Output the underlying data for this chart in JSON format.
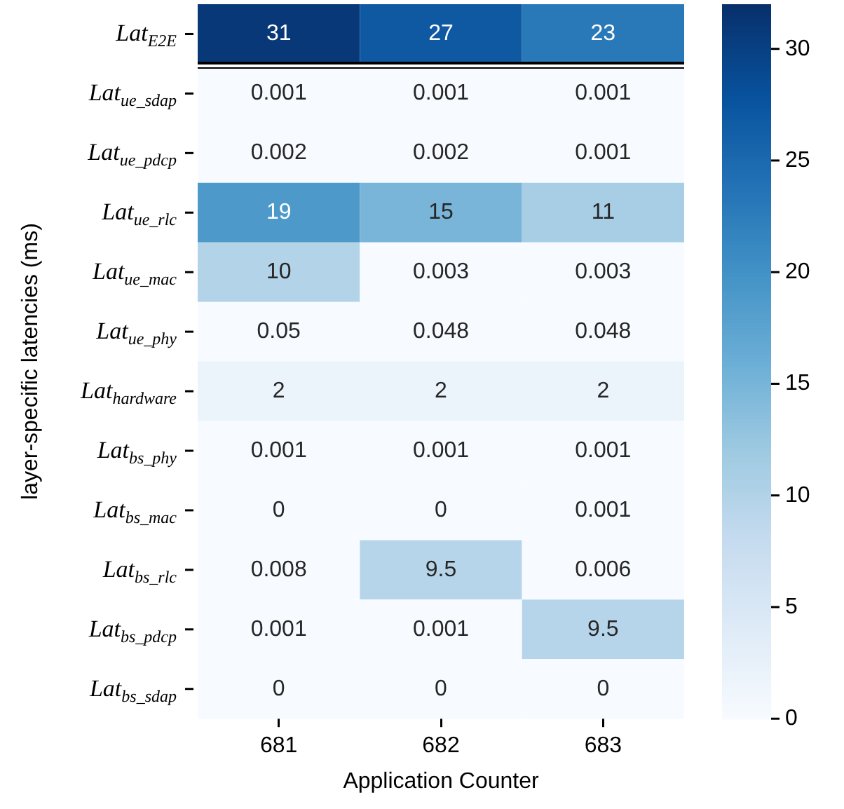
{
  "chart_data": {
    "type": "heatmap",
    "xlabel": "Application Counter",
    "ylabel": "layer-specific latencies (ms)",
    "categories": [
      "681",
      "682",
      "683"
    ],
    "y_categories": [
      "Lat$_{E2E}$",
      "Lat$_{ue_sdap}$",
      "Lat$_{ue_pdcp}$",
      "Lat$_{ue_rlc}$",
      "Lat$_{ue_mac}$",
      "Lat$_{ue_phy}$",
      "Lat$_{hardware}$",
      "Lat$_{bs_phy}$",
      "Lat$_{bs_mac}$",
      "Lat$_{bs_rlc}$",
      "Lat$_{bs_pdcp}$",
      "Lat$_{bs_sdap}$"
    ],
    "cells": [
      [
        31,
        27,
        23
      ],
      [
        0.001,
        0.001,
        0.001
      ],
      [
        0.002,
        0.002,
        0.001
      ],
      [
        19,
        15,
        11
      ],
      [
        10,
        0.003,
        0.003
      ],
      [
        0.05,
        0.048,
        0.048
      ],
      [
        2,
        2,
        2
      ],
      [
        0.001,
        0.001,
        0.001
      ],
      [
        0,
        0,
        0.001
      ],
      [
        0.008,
        9.5,
        0.006
      ],
      [
        0.001,
        0.001,
        9.5
      ],
      [
        0,
        0,
        0
      ]
    ],
    "data_labels": true,
    "clim": [
      0,
      32
    ],
    "cticks": [
      0,
      5,
      10,
      15,
      20,
      25,
      30
    ]
  }
}
